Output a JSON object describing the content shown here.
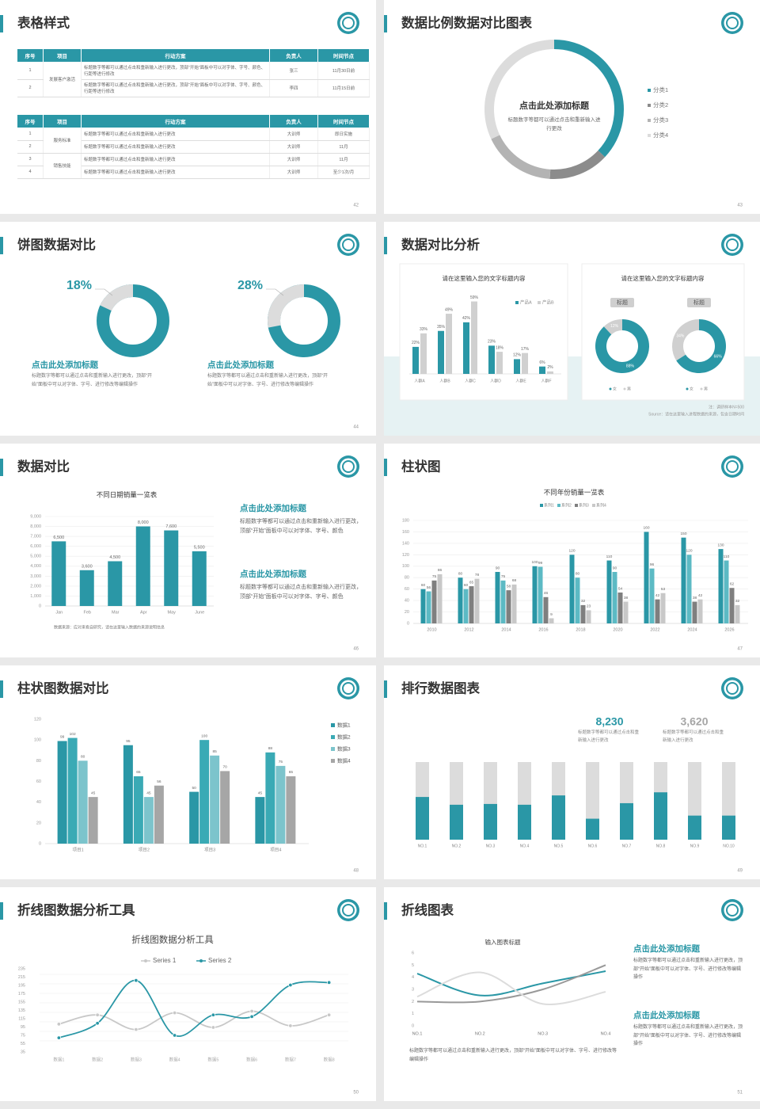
{
  "slides": [
    {
      "title": "表格样式",
      "page": 42,
      "tables": [
        {
          "header": [
            "序号",
            "项目",
            "行动方案",
            "负责人",
            "时间节点"
          ],
          "groups": [
            {
              "project": "发展客户激活",
              "rows": [
                [
                  "1",
                  "标题数字等都可以通过点击和重新输入进行更改，顶部“开始”面板中可以对字体、字号、颜色、行距等进行修改",
                  "张三",
                  "11月30日前"
                ],
                [
                  "2",
                  "标题数字等都可以通过点击和重新输入进行更改，顶部“开始”面板中可以对字体、字号、颜色、行距等进行修改",
                  "李四",
                  "11月15日前"
                ]
              ]
            }
          ]
        },
        {
          "header": [
            "序号",
            "项目",
            "行动方案",
            "负责人",
            "时间节点"
          ],
          "groups": [
            {
              "project": "服务标准",
              "rows": [
                [
                  "1",
                  "标题数字等都可以通过点击和重新输入进行更改",
                  "大训师",
                  "即日实施"
                ],
                [
                  "2",
                  "标题数字等都可以通过点击和重新输入进行更改",
                  "大训师",
                  "11月"
                ]
              ]
            },
            {
              "project": "销售技能",
              "rows": [
                [
                  "3",
                  "标题数字等都可以通过点击和重新输入进行更改",
                  "大训师",
                  "11月"
                ],
                [
                  "4",
                  "标题数字等都可以通过点击和重新输入进行更改",
                  "大训师",
                  "至少1次/月"
                ]
              ]
            }
          ]
        }
      ]
    },
    {
      "title": "数据比例数据对比图表",
      "page": 43,
      "chart": {
        "type": "donut",
        "title": "点击此处添加标题",
        "text": "标题数字等都可以通过点击和重新输入进行更改",
        "categories": [
          "分类1",
          "分类2",
          "分类3",
          "分类4"
        ],
        "values": [
          37,
          14,
          17,
          32
        ],
        "colors": [
          "#2a97a6",
          "#8c8c8c",
          "#b3b3b3",
          "#dcdcdc"
        ]
      }
    },
    {
      "title": "饼图数据对比",
      "page": 44,
      "charts": [
        {
          "type": "ring",
          "values": [
            18
          ],
          "value_labels": [
            "18%"
          ],
          "color": "#dcdcdc",
          "track_color": "#2a97a6",
          "heading": "点击此处添加标题",
          "text": "标题数字等都可以通过点击和重新输入进行更改，顶部“开始”面板中可以对字体、字号、进行修改等编辑操作"
        },
        {
          "type": "ring",
          "values": [
            28
          ],
          "value_labels": [
            "28%"
          ],
          "color": "#dcdcdc",
          "track_color": "#2a97a6",
          "heading": "点击此处添加标题",
          "text": "标题数字等都可以通过点击和重新输入进行更改，顶部“开始”面板中可以对字体、字号、进行修改等编辑操作"
        }
      ]
    },
    {
      "title": "数据对比分析",
      "page": 45,
      "chart": {
        "type": "bar",
        "title": "请在这里输入您的文字标题内容",
        "categories": [
          "人群A",
          "人群B",
          "人群C",
          "人群D",
          "人群E",
          "人群F"
        ],
        "series": [
          {
            "name": "产品A",
            "color": "#2a97a6",
            "values": [
              22,
              35,
              42,
              23,
              12,
              6
            ],
            "value_labels": [
              "22%",
              "35%",
              "42%",
              "23%",
              "12%",
              "6%"
            ]
          },
          {
            "name": "产品B",
            "color": "#d0d0d0",
            "values": [
              33,
              49,
              59,
              18,
              17,
              2
            ],
            "value_labels": [
              "33%",
              "49%",
              "59%",
              "18%",
              "17%",
              "2%"
            ]
          }
        ]
      },
      "donuts": {
        "title": "请在这里输入您的文字标题内容",
        "colors": [
          "#d0d0d0",
          "#2a97a6"
        ],
        "items": [
          {
            "label": "标题",
            "categories": [
              "女",
              "男"
            ],
            "values": [
              12,
              88
            ],
            "value_labels": [
              "12%",
              "88%"
            ]
          },
          {
            "label": "标题",
            "categories": [
              "女",
              "男"
            ],
            "values": [
              34,
              66
            ],
            "value_labels": [
              "34%",
              "66%"
            ]
          }
        ]
      },
      "notes": [
        "注：调研样本N=500",
        "Source：请在这里输入进程数据的来源，包含日期时间"
      ]
    },
    {
      "title": "数据对比",
      "page": 46,
      "chart": {
        "type": "bar",
        "title": "不同日期销量一览表",
        "categories": [
          "Jan",
          "Feb",
          "Mar",
          "Apr",
          "May",
          "June"
        ],
        "values": [
          6500,
          3600,
          4500,
          8000,
          7600,
          5500
        ],
        "value_labels": [
          "6,500",
          "3,600",
          "4,500",
          "8,000",
          "7,600",
          "5,500"
        ],
        "color": "#2a97a6",
        "ylim": [
          0,
          9000
        ],
        "yticks": [
          0,
          {
            "value": 1000,
            "label": "1,000"
          },
          {
            "value": 2000,
            "label": "2,000"
          },
          {
            "value": 3000,
            "label": "3,000"
          },
          {
            "value": 4000,
            "label": "4,000"
          },
          {
            "value": 5000,
            "label": "5,000"
          },
          {
            "value": 6000,
            "label": "6,000"
          },
          {
            "value": 7000,
            "label": "7,000"
          },
          {
            "value": 8000,
            "label": "8,000"
          },
          {
            "value": 9000,
            "label": "9,000"
          }
        ],
        "grid": true,
        "source": "数据来源：应对来看自研究，请在这里输入数据的来源说明信息"
      },
      "blocks": [
        {
          "heading": "点击此处添加标题",
          "text": "标题数字等都可以通过点击和重新输入进行更改，顶部“开始”面板中可以对字体、字号、颜色"
        },
        {
          "heading": "点击此处添加标题",
          "text": "标题数字等都可以通过点击和重新输入进行更改，顶部“开始”面板中可以对字体、字号、颜色"
        }
      ]
    },
    {
      "title": "柱状图",
      "page": 47,
      "chart": {
        "type": "bar",
        "title": "不同年份销量一览表",
        "categories": [
          "2010",
          "2012",
          "2014",
          "2016",
          "2018",
          "2020",
          "2022",
          "2024",
          "2026"
        ],
        "series": [
          {
            "name": "系列1",
            "color": "#2a97a6",
            "values": [
              60,
              80,
              90,
              100,
              120,
              110,
              160,
              150,
              130
            ]
          },
          {
            "name": "系列2",
            "color": "#5cbac4",
            "values": [
              56,
              60,
              75,
              99,
              80,
              90,
              96,
              120,
              110
            ]
          },
          {
            "name": "系列3",
            "color": "#7f7f7f",
            "values": [
              75,
              65,
              58,
              46,
              32,
              54,
              42,
              38,
              62
            ]
          },
          {
            "name": "系列4",
            "color": "#c8c8c8",
            "values": [
              86,
              78,
              68,
              9,
              23,
              38,
              53,
              42,
              32
            ]
          }
        ],
        "ylim": [
          0,
          180
        ],
        "yticks": [
          0,
          20,
          40,
          60,
          80,
          100,
          120,
          140,
          160,
          180
        ],
        "grid": true
      }
    },
    {
      "title": "柱状图数据对比",
      "page": 48,
      "chart": {
        "type": "bar",
        "categories": [
          "项目1",
          "项目2",
          "项目3",
          "项目4"
        ],
        "series": [
          {
            "name": "数据1",
            "color": "#2a97a6",
            "values": [
              99,
              95,
              50,
              45
            ]
          },
          {
            "name": "数据2",
            "color": "#3aaab5",
            "values": [
              102,
              65,
              100,
              88
            ]
          },
          {
            "name": "数据3",
            "color": "#7cc4cc",
            "values": [
              80,
              45,
              85,
              75
            ]
          },
          {
            "name": "数据4",
            "color": "#a6a6a6",
            "values": [
              45,
              56,
              70,
              65
            ]
          }
        ],
        "ylim": [
          0,
          120
        ],
        "yticks": [
          0,
          20,
          40,
          60,
          80,
          100,
          120
        ],
        "grid": false,
        "legend": "right"
      }
    },
    {
      "title": "排行数据图表",
      "page": 49,
      "chart": {
        "type": "progress",
        "categories": [
          "NO.1",
          "NO.2",
          "NO.3",
          "NO.4",
          "NO.5",
          "NO.6",
          "NO.7",
          "NO.8",
          "NO.9",
          "NO.10"
        ],
        "values": [
          55,
          45,
          46,
          45,
          57,
          27,
          47,
          61,
          31,
          31
        ],
        "ylim": [
          0,
          100
        ],
        "color": "#2a97a6",
        "track_color": "#dcdcdc"
      },
      "stats": [
        {
          "label": "8,230",
          "text": "标题数字等都可以通过点击和重新输入进行更改",
          "color": "#2a97a6"
        },
        {
          "label": "3,620",
          "text": "标题数字等都可以通过点击和重新输入进行更改",
          "color": "#a6a6a6"
        }
      ]
    },
    {
      "title": "折线图数据分析工具",
      "page": 50,
      "chart": {
        "type": "line",
        "title": "折线图数据分析工具",
        "categories": [
          "数据1",
          "数据2",
          "数据3",
          "数据4",
          "数据5",
          "数据6",
          "数据7",
          "数据8"
        ],
        "series": [
          {
            "name": "Series 1",
            "color": "#c8c8c8",
            "values": [
              102,
              124,
              89,
              129,
              94,
              133,
              98,
              124
            ]
          },
          {
            "name": "Series 2",
            "color": "#2a97a6",
            "values": [
              69,
              104,
              207,
              75,
              124,
              120,
              196,
              202
            ]
          }
        ],
        "ylim": [
          35,
          235
        ],
        "yticks": [
          35,
          55,
          75,
          95,
          115,
          135,
          155,
          175,
          195,
          215,
          235
        ],
        "grid": false
      }
    },
    {
      "title": "折线图表",
      "page": 51,
      "chart": {
        "type": "line",
        "title": "输入图表标题",
        "categories": [
          "NO.1",
          "NO.2",
          "NO.3",
          "NO.4"
        ],
        "series": [
          {
            "color": "#2a97a6",
            "values": [
              4.3,
              2.5,
              3.5,
              4.5
            ]
          },
          {
            "color": "#999999",
            "values": [
              2.0,
              2.0,
              3.0,
              5.0
            ]
          },
          {
            "color": "#dcdcdc",
            "values": [
              2.4,
              4.4,
              1.8,
              2.8
            ]
          }
        ],
        "ylim": [
          0,
          6
        ],
        "yticks": [
          0,
          1,
          2,
          3,
          4,
          5,
          6
        ],
        "grid": false
      },
      "text": "标题数字等都可以通过点击和重新输入进行更改，顶部“开始”面板中可以对字体、字号、进行修改等编辑操作",
      "blocks": [
        {
          "heading": "点击此处添加标题",
          "text": "标题数字等都可以通过点击和重新输入进行更改，顶部“开始”面板中可以对字体、字号、进行修改等编辑操作"
        },
        {
          "heading": "点击此处添加标题",
          "text": "标题数字等都可以通过点击和重新输入进行更改，顶部“开始”面板中可以对字体、字号、进行修改等编辑操作"
        }
      ]
    }
  ]
}
